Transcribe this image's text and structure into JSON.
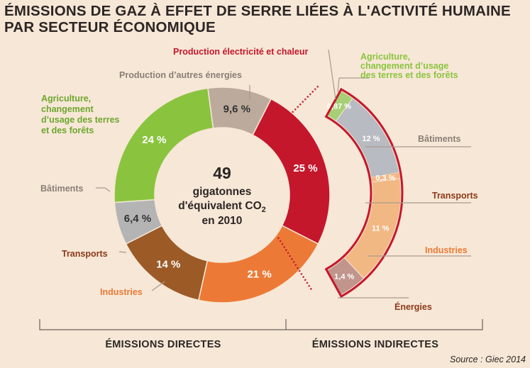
{
  "title_line1": "ÉMISSIONS DE GAZ À EFFET DE SERRE LIÉES À L'ACTIVITÉ HUMAINE",
  "title_line2": "PAR SECTEUR ÉCONOMIQUE",
  "center": {
    "value": "49",
    "line1": "gigatonnes",
    "line2": "d'équivalent CO",
    "line2_sub": "2",
    "line3": "en 2010"
  },
  "sections": {
    "direct": "ÉMISSIONS DIRECTES",
    "indirect": "ÉMISSIONS INDIRECTES"
  },
  "source": "Source : Giec 2014",
  "colors": {
    "electricity": "#c4172c",
    "industries": "#ec7a36",
    "transports": "#9b5a26",
    "buildings": "#b4b4b4",
    "agriculture": "#8ac43f",
    "other_energy": "#bcab9c",
    "ind_agriculture": "#a6cf76",
    "ind_buildings": "#b8bbc1",
    "ind_industries": "#f2b884",
    "ind_energies": "#c1948c",
    "text_dark": "#2c2625",
    "text_brown": "#8b3a1a",
    "text_grey": "#8a7f76"
  },
  "chart_data": [
    {
      "type": "pie",
      "title": "ÉMISSIONS DIRECTES",
      "total_label": "49 gigatonnes d'équivalent CO2 en 2010",
      "slices": [
        {
          "label": "Production électricité et chaleur",
          "value": 25,
          "value_label": "25 %",
          "color": "#c4172c"
        },
        {
          "label": "Industries",
          "value": 21,
          "value_label": "21 %",
          "color": "#ec7a36"
        },
        {
          "label": "Transports",
          "value": 14,
          "value_label": "14 %",
          "color": "#9b5a26"
        },
        {
          "label": "Bâtiments",
          "value": 6.4,
          "value_label": "6,4 %",
          "color": "#b4b4b4"
        },
        {
          "label": "Agriculture, changement d'usage des terres et des forêts",
          "value": 24,
          "value_label": "24 %",
          "color": "#8ac43f"
        },
        {
          "label": "Production d'autres énergies",
          "value": 9.6,
          "value_label": "9,6 %",
          "color": "#bcab9c"
        }
      ]
    },
    {
      "type": "pie",
      "title": "ÉMISSIONS INDIRECTES",
      "parent": "Production électricité et chaleur",
      "slices": [
        {
          "label": "Agriculture, changement d'usage des terres et des forêts",
          "value": 0.87,
          "value_label": "0,87 %",
          "color": "#a6cf76"
        },
        {
          "label": "Bâtiments",
          "value": 12,
          "value_label": "12 %",
          "color": "#b8bbc1"
        },
        {
          "label": "Transports",
          "value": 0.3,
          "value_label": "0,3 %",
          "color": "#f2b884"
        },
        {
          "label": "Industries",
          "value": 11,
          "value_label": "11 %",
          "color": "#f2b884"
        },
        {
          "label": "Énergies",
          "value": 1.4,
          "value_label": "1,4 %",
          "color": "#c1948c"
        }
      ]
    }
  ]
}
